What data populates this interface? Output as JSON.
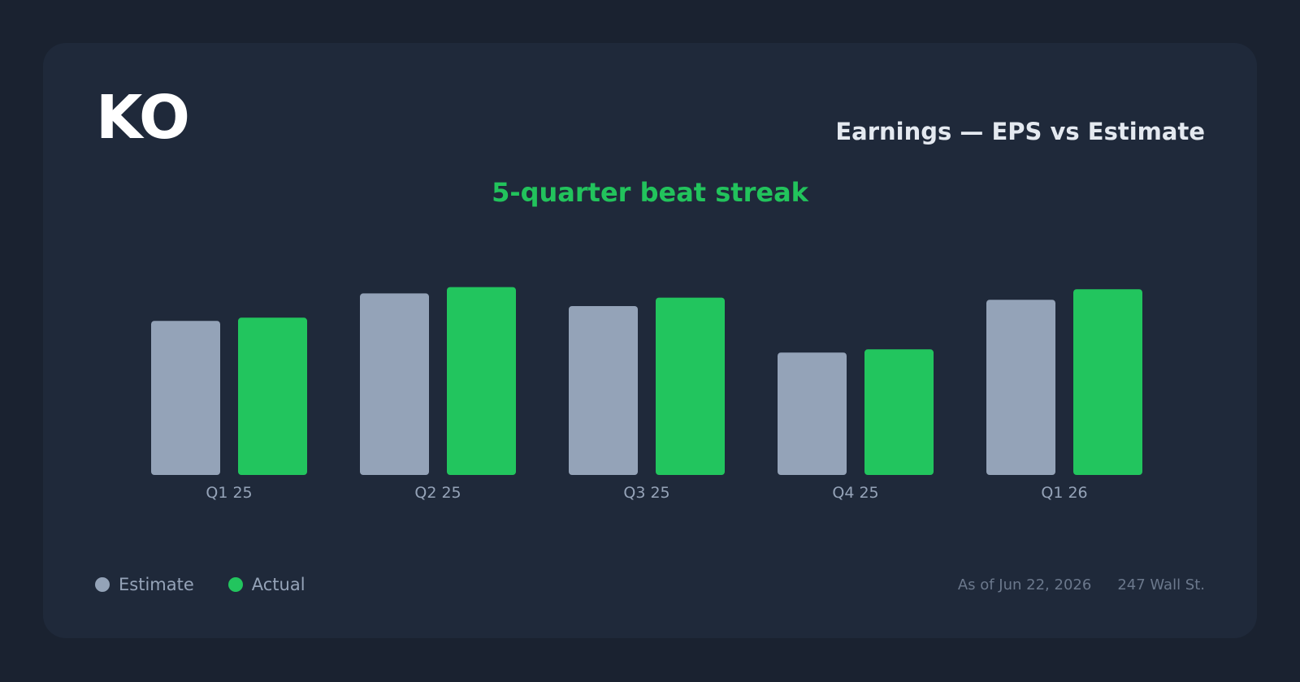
{
  "header": {
    "ticker": "KO",
    "title": "Earnings — EPS vs Estimate",
    "subtitle": "5-quarter beat streak"
  },
  "legend": {
    "estimate_label": "Estimate",
    "actual_label": "Actual"
  },
  "footer": {
    "as_of": "As of Jun 22, 2026",
    "source": "247 Wall St."
  },
  "colors": {
    "estimate": "#94a3b8",
    "actual": "#22c55e",
    "tick_label": "#95a3b8"
  },
  "chart_data": {
    "type": "bar",
    "categories": [
      "Q1 25",
      "Q2 25",
      "Q3 25",
      "Q4 25",
      "Q1 26"
    ],
    "series": [
      {
        "name": "Estimate",
        "values": [
          0.73,
          0.86,
          0.8,
          0.58,
          0.83
        ]
      },
      {
        "name": "Actual",
        "values": [
          0.745,
          0.89,
          0.84,
          0.595,
          0.88
        ]
      }
    ],
    "ylim": [
      0,
      1
    ],
    "grid": false,
    "legend_position": "bottom-left"
  }
}
